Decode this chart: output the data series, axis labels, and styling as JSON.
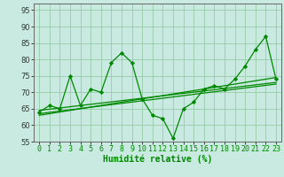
{
  "xlabel": "Humidité relative (%)",
  "xlim": [
    -0.5,
    23.5
  ],
  "ylim": [
    55,
    97
  ],
  "yticks": [
    55,
    60,
    65,
    70,
    75,
    80,
    85,
    90,
    95
  ],
  "xticks": [
    0,
    1,
    2,
    3,
    4,
    5,
    6,
    7,
    8,
    9,
    10,
    11,
    12,
    13,
    14,
    15,
    16,
    17,
    18,
    19,
    20,
    21,
    22,
    23
  ],
  "bg_color": "#c8eae0",
  "grid_color": "#99ccaa",
  "line_color": "#008800",
  "line_data": [
    64,
    66,
    65,
    75,
    66,
    71,
    70,
    79,
    82,
    79,
    68,
    63,
    62,
    56,
    65,
    67,
    71,
    72,
    71,
    74,
    78,
    83,
    87,
    74
  ],
  "trend1_x": [
    0,
    23
  ],
  "trend1_y": [
    63.5,
    72.5
  ],
  "trend2_x": [
    0,
    23
  ],
  "trend2_y": [
    63.0,
    74.5
  ],
  "trend3_x": [
    0,
    23
  ],
  "trend3_y": [
    64.5,
    73.0
  ],
  "xlabel_fontsize": 7,
  "tick_fontsize": 6
}
